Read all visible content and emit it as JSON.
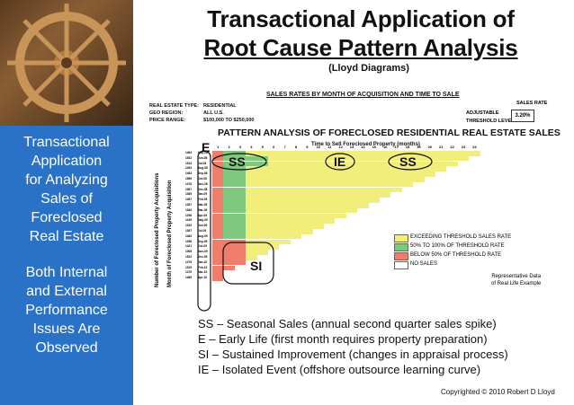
{
  "title": {
    "line1": "Transactional Application of",
    "line2": "Root Cause Pattern Analysis",
    "subtitle": "(Lloyd Diagrams)"
  },
  "sidebar": {
    "block1": [
      "Transactional",
      "Application",
      "for Analyzing",
      "Sales of",
      "Foreclosed",
      "Real Estate"
    ],
    "block2": [
      "Both Internal",
      "and External",
      "Performance",
      "Issues Are",
      "Observed"
    ]
  },
  "report": {
    "heading": "SALES RATES BY MONTH OF ACQUISITION AND TIME TO SALE",
    "meta": [
      {
        "label": "REAL ESTATE TYPE:",
        "value": "RESIDENTIAL"
      },
      {
        "label": "GEO REGION:",
        "value": "ALL U.S."
      },
      {
        "label": "PRICE RANGE:",
        "value": "$100,000 TO $250,000"
      }
    ],
    "sales_rate_label": "SALES RATE",
    "adjustable_label": "ADJUSTABLE",
    "threshold_label": "THRESHOLD LEVEL",
    "threshold_value": "3.20%",
    "analysis_title": "PATTERN ANALYSIS OF FORECLOSED RESIDENTIAL REAL ESTATE SALES",
    "time_axis_label": "Time to Sell Foreclosed Property (months)",
    "y_label_outer": "Number of Foreclosed Property Acquisitions",
    "y_label_inner": "Month of Foreclosed Property Acquisition",
    "column_headers": [
      "1",
      "2",
      "3",
      "4",
      "5",
      "6",
      "7",
      "8",
      "9",
      "10",
      "11",
      "12",
      "13",
      "14",
      "15",
      "16",
      "17",
      "18",
      "19",
      "20",
      "21",
      "22",
      "23",
      "24"
    ],
    "rows": [
      {
        "count": "1464",
        "month": "May-08"
      },
      {
        "count": "1532",
        "month": "Jun-08"
      },
      {
        "count": "1324",
        "month": "Jul-08"
      },
      {
        "count": "1454",
        "month": "Aug-08"
      },
      {
        "count": "1464",
        "month": "Sep-08"
      },
      {
        "count": "1589",
        "month": "Oct-08"
      },
      {
        "count": "1478",
        "month": "Nov-08"
      },
      {
        "count": "1367",
        "month": "Dec-08"
      },
      {
        "count": "1365",
        "month": "Jan-09"
      },
      {
        "count": "1487",
        "month": "Feb-09"
      },
      {
        "count": "1487",
        "month": "Mar-09"
      },
      {
        "count": "1384",
        "month": "Mar-09"
      },
      {
        "count": "1298",
        "month": "Apr-09"
      },
      {
        "count": "1426",
        "month": "May-09"
      },
      {
        "count": "1332",
        "month": "Jun-09"
      },
      {
        "count": "1387",
        "month": "Jul-09"
      },
      {
        "count": "1483",
        "month": "Aug-09"
      },
      {
        "count": "1398",
        "month": "Sep-09"
      },
      {
        "count": "1421",
        "month": "Oct-09"
      },
      {
        "count": "1008",
        "month": "Nov-09"
      },
      {
        "count": "1522",
        "month": "Dec-09"
      },
      {
        "count": "1479",
        "month": "Jan-10"
      },
      {
        "count": "1515",
        "month": "Feb-10"
      },
      {
        "count": "1475",
        "month": "Mar-10"
      },
      {
        "count": "1489",
        "month": "Apr-10"
      }
    ],
    "legend": [
      {
        "label": "EXCEEDING THRESHOLD SALES RATE",
        "color": "#f2ee7c"
      },
      {
        "label": "50% TO 100% OF THRESHOLD RATE",
        "color": "#7fc97f"
      },
      {
        "label": "BELOW 50% OF THRESHOLD RATE",
        "color": "#f07c6c"
      },
      {
        "label": "NO SALES",
        "color": "#ffffff"
      }
    ],
    "example_note": [
      "Representative Data",
      "of Real Life Example"
    ],
    "marks": {
      "ss1": "SS",
      "e": "E",
      "ie": "IE",
      "ss2": "SS",
      "si": "SI"
    }
  },
  "definitions": [
    "SS – Seasonal Sales (annual second quarter sales spike)",
    "E – Early Life (first month requires property preparation)",
    "SI – Sustained Improvement (changes in appraisal process)",
    "IE – Isolated Event (offshore outsource learning curve)"
  ],
  "copyright": "Copyrighted © 2010 Robert D Lloyd",
  "colors": {
    "sidebar": "#2a72c8",
    "yellow": "#f2ee7c",
    "green": "#7fc97f",
    "red": "#f07c6c"
  }
}
